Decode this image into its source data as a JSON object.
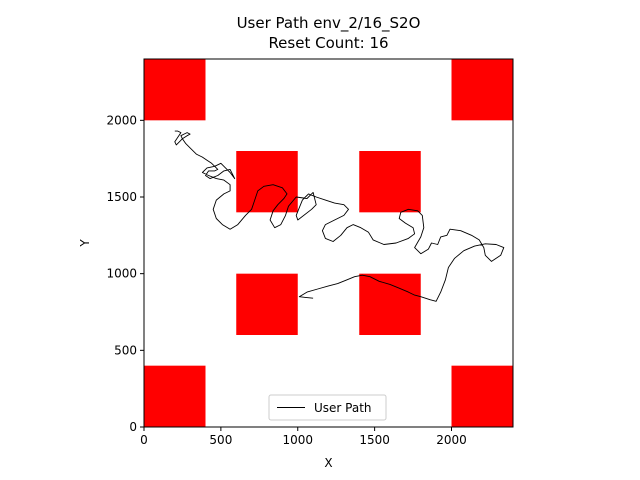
{
  "chart_data": {
    "type": "line",
    "title": "User Path env_2/16_S2O",
    "subtitle": "Reset Count: 16",
    "xlabel": "X",
    "ylabel": "Y",
    "xlim": [
      0,
      2400
    ],
    "ylim": [
      0,
      2400
    ],
    "xticks": [
      0,
      500,
      1000,
      1500,
      2000
    ],
    "yticks": [
      0,
      500,
      1000,
      1500,
      2000
    ],
    "grid": false,
    "legend_position": "lower center",
    "series": [
      {
        "name": "User Path",
        "color": "#000000",
        "values": [
          [
            1100,
            840
          ],
          [
            1050,
            845
          ],
          [
            1010,
            850
          ],
          [
            1060,
            880
          ],
          [
            1130,
            900
          ],
          [
            1200,
            920
          ],
          [
            1260,
            935
          ],
          [
            1320,
            960
          ],
          [
            1370,
            980
          ],
          [
            1420,
            990
          ],
          [
            1470,
            980
          ],
          [
            1530,
            950
          ],
          [
            1600,
            930
          ],
          [
            1660,
            905
          ],
          [
            1720,
            880
          ],
          [
            1760,
            860
          ],
          [
            1800,
            850
          ],
          [
            1860,
            830
          ],
          [
            1900,
            820
          ],
          [
            1930,
            880
          ],
          [
            1960,
            960
          ],
          [
            1980,
            1040
          ],
          [
            2020,
            1100
          ],
          [
            2080,
            1150
          ],
          [
            2150,
            1180
          ],
          [
            2220,
            1195
          ],
          [
            2290,
            1190
          ],
          [
            2340,
            1170
          ],
          [
            2320,
            1120
          ],
          [
            2260,
            1080
          ],
          [
            2220,
            1120
          ],
          [
            2210,
            1170
          ],
          [
            2180,
            1220
          ],
          [
            2130,
            1250
          ],
          [
            2060,
            1280
          ],
          [
            1990,
            1290
          ],
          [
            1970,
            1250
          ],
          [
            1930,
            1240
          ],
          [
            1910,
            1190
          ],
          [
            1870,
            1200
          ],
          [
            1850,
            1160
          ],
          [
            1800,
            1130
          ],
          [
            1760,
            1170
          ],
          [
            1800,
            1240
          ],
          [
            1820,
            1300
          ],
          [
            1810,
            1380
          ],
          [
            1780,
            1410
          ],
          [
            1720,
            1420
          ],
          [
            1670,
            1400
          ],
          [
            1660,
            1360
          ],
          [
            1700,
            1330
          ],
          [
            1750,
            1300
          ],
          [
            1760,
            1260
          ],
          [
            1720,
            1230
          ],
          [
            1640,
            1200
          ],
          [
            1560,
            1190
          ],
          [
            1490,
            1220
          ],
          [
            1460,
            1270
          ],
          [
            1410,
            1300
          ],
          [
            1360,
            1320
          ],
          [
            1320,
            1300
          ],
          [
            1280,
            1250
          ],
          [
            1230,
            1210
          ],
          [
            1180,
            1230
          ],
          [
            1160,
            1280
          ],
          [
            1180,
            1320
          ],
          [
            1240,
            1350
          ],
          [
            1300,
            1380
          ],
          [
            1330,
            1420
          ],
          [
            1300,
            1450
          ],
          [
            1240,
            1460
          ],
          [
            1180,
            1480
          ],
          [
            1120,
            1500
          ],
          [
            1070,
            1520
          ],
          [
            1050,
            1500
          ],
          [
            1030,
            1480
          ],
          [
            1010,
            1430
          ],
          [
            990,
            1380
          ],
          [
            1000,
            1350
          ],
          [
            1090,
            1420
          ],
          [
            1120,
            1450
          ],
          [
            1100,
            1530
          ],
          [
            1060,
            1490
          ],
          [
            990,
            1500
          ],
          [
            940,
            1440
          ],
          [
            920,
            1380
          ],
          [
            890,
            1320
          ],
          [
            850,
            1300
          ],
          [
            820,
            1350
          ],
          [
            840,
            1410
          ],
          [
            870,
            1450
          ],
          [
            910,
            1490
          ],
          [
            930,
            1520
          ],
          [
            900,
            1560
          ],
          [
            840,
            1580
          ],
          [
            780,
            1570
          ],
          [
            740,
            1540
          ],
          [
            720,
            1480
          ],
          [
            700,
            1420
          ],
          [
            660,
            1380
          ],
          [
            610,
            1320
          ],
          [
            560,
            1290
          ],
          [
            510,
            1320
          ],
          [
            470,
            1360
          ],
          [
            450,
            1420
          ],
          [
            470,
            1480
          ],
          [
            520,
            1520
          ],
          [
            560,
            1540
          ],
          [
            560,
            1580
          ],
          [
            520,
            1610
          ],
          [
            470,
            1620
          ],
          [
            420,
            1640
          ],
          [
            380,
            1660
          ],
          [
            410,
            1690
          ],
          [
            460,
            1700
          ],
          [
            500,
            1720
          ],
          [
            530,
            1690
          ],
          [
            560,
            1660
          ],
          [
            590,
            1620
          ],
          [
            560,
            1680
          ],
          [
            520,
            1670
          ],
          [
            480,
            1640
          ],
          [
            430,
            1620
          ],
          [
            400,
            1640
          ],
          [
            420,
            1670
          ],
          [
            460,
            1670
          ],
          [
            480,
            1680
          ],
          [
            460,
            1700
          ],
          [
            440,
            1720
          ],
          [
            410,
            1740
          ],
          [
            380,
            1760
          ],
          [
            340,
            1780
          ],
          [
            300,
            1820
          ],
          [
            270,
            1850
          ],
          [
            250,
            1880
          ],
          [
            240,
            1900
          ],
          [
            260,
            1910
          ],
          [
            280,
            1920
          ],
          [
            300,
            1910
          ],
          [
            280,
            1900
          ],
          [
            250,
            1880
          ],
          [
            230,
            1860
          ],
          [
            210,
            1840
          ],
          [
            200,
            1860
          ],
          [
            220,
            1890
          ],
          [
            240,
            1920
          ],
          [
            220,
            1930
          ],
          [
            200,
            1930
          ]
        ]
      }
    ],
    "obstacles_color": "#ff0000",
    "obstacles": [
      {
        "x0": 0,
        "y0": 2000,
        "x1": 400,
        "y1": 2400
      },
      {
        "x0": 2000,
        "y0": 2000,
        "x1": 2400,
        "y1": 2400
      },
      {
        "x0": 600,
        "y0": 1400,
        "x1": 1000,
        "y1": 1800
      },
      {
        "x0": 1400,
        "y0": 1400,
        "x1": 1800,
        "y1": 1800
      },
      {
        "x0": 600,
        "y0": 600,
        "x1": 1000,
        "y1": 1000
      },
      {
        "x0": 1400,
        "y0": 600,
        "x1": 1800,
        "y1": 1000
      },
      {
        "x0": 0,
        "y0": 0,
        "x1": 400,
        "y1": 400
      },
      {
        "x0": 2000,
        "y0": 0,
        "x1": 2400,
        "y1": 400
      }
    ]
  }
}
